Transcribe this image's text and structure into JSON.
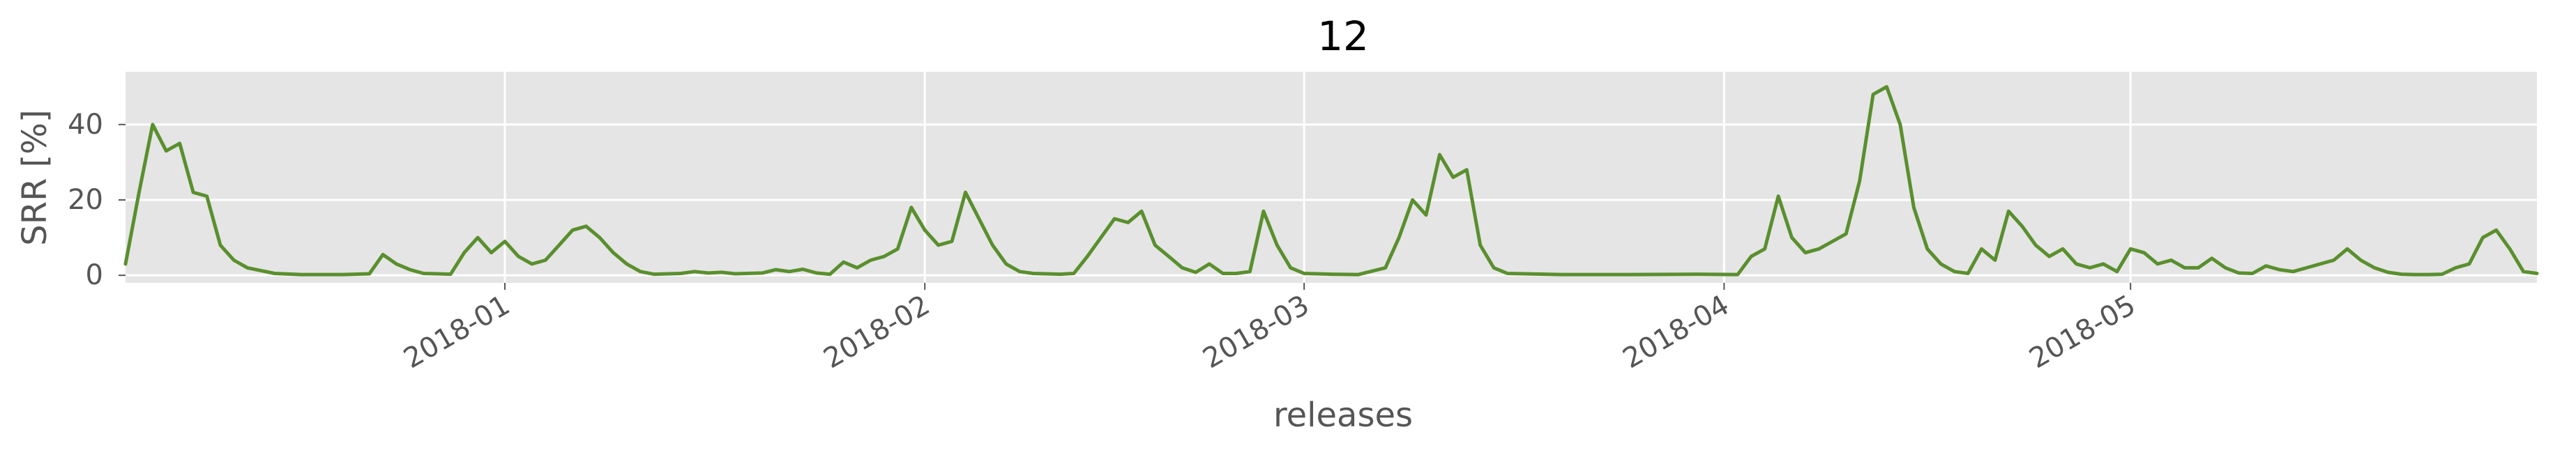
{
  "chart_data": {
    "type": "line",
    "title": "12",
    "xlabel": "releases",
    "ylabel": "SRR [%]",
    "x_tick_labels": [
      "2018-01",
      "2018-02",
      "2018-03",
      "2018-04",
      "2018-05"
    ],
    "y_tick_labels": [
      "0",
      "20",
      "40"
    ],
    "ylim": [
      -2,
      54
    ],
    "y_ticks": [
      0,
      20,
      40
    ],
    "grid": true,
    "xlim": [
      "2017-12-04",
      "2018-05-31"
    ],
    "x_ticks": [
      "2018-01-01",
      "2018-02-01",
      "2018-03-01",
      "2018-04-01",
      "2018-05-01"
    ],
    "series": [
      {
        "color": "#5a8f2e",
        "points": [
          [
            "2017-12-04",
            3
          ],
          [
            "2017-12-05",
            22
          ],
          [
            "2017-12-06",
            40
          ],
          [
            "2017-12-07",
            33
          ],
          [
            "2017-12-08",
            35
          ],
          [
            "2017-12-09",
            22
          ],
          [
            "2017-12-10",
            21
          ],
          [
            "2017-12-11",
            8
          ],
          [
            "2017-12-12",
            4
          ],
          [
            "2017-12-13",
            2
          ],
          [
            "2017-12-15",
            0.5
          ],
          [
            "2017-12-17",
            0.2
          ],
          [
            "2017-12-20",
            0.2
          ],
          [
            "2017-12-22",
            0.4
          ],
          [
            "2017-12-23",
            5.5
          ],
          [
            "2017-12-24",
            3
          ],
          [
            "2017-12-25",
            1.5
          ],
          [
            "2017-12-26",
            0.5
          ],
          [
            "2017-12-28",
            0.3
          ],
          [
            "2017-12-29",
            6
          ],
          [
            "2017-12-30",
            10
          ],
          [
            "2017-12-31",
            6
          ],
          [
            "2018-01-01",
            9
          ],
          [
            "2018-01-02",
            5
          ],
          [
            "2018-01-03",
            3
          ],
          [
            "2018-01-04",
            4
          ],
          [
            "2018-01-05",
            8
          ],
          [
            "2018-01-06",
            12
          ],
          [
            "2018-01-07",
            13
          ],
          [
            "2018-01-08",
            10
          ],
          [
            "2018-01-09",
            6
          ],
          [
            "2018-01-10",
            3
          ],
          [
            "2018-01-11",
            1
          ],
          [
            "2018-01-12",
            0.3
          ],
          [
            "2018-01-14",
            0.5
          ],
          [
            "2018-01-15",
            1
          ],
          [
            "2018-01-16",
            0.6
          ],
          [
            "2018-01-17",
            0.8
          ],
          [
            "2018-01-18",
            0.4
          ],
          [
            "2018-01-20",
            0.6
          ],
          [
            "2018-01-21",
            1.5
          ],
          [
            "2018-01-22",
            1
          ],
          [
            "2018-01-23",
            1.6
          ],
          [
            "2018-01-24",
            0.6
          ],
          [
            "2018-01-25",
            0.3
          ],
          [
            "2018-01-26",
            3.5
          ],
          [
            "2018-01-27",
            2
          ],
          [
            "2018-01-28",
            4
          ],
          [
            "2018-01-29",
            5
          ],
          [
            "2018-01-30",
            7
          ],
          [
            "2018-01-31",
            18
          ],
          [
            "2018-02-01",
            12
          ],
          [
            "2018-02-02",
            8
          ],
          [
            "2018-02-03",
            9
          ],
          [
            "2018-02-04",
            22
          ],
          [
            "2018-02-05",
            15
          ],
          [
            "2018-02-06",
            8
          ],
          [
            "2018-02-07",
            3
          ],
          [
            "2018-02-08",
            1
          ],
          [
            "2018-02-09",
            0.5
          ],
          [
            "2018-02-11",
            0.3
          ],
          [
            "2018-02-12",
            0.5
          ],
          [
            "2018-02-13",
            5
          ],
          [
            "2018-02-14",
            10
          ],
          [
            "2018-02-15",
            15
          ],
          [
            "2018-02-16",
            14
          ],
          [
            "2018-02-17",
            17
          ],
          [
            "2018-02-18",
            8
          ],
          [
            "2018-02-19",
            5
          ],
          [
            "2018-02-20",
            2
          ],
          [
            "2018-02-21",
            0.8
          ],
          [
            "2018-02-22",
            3
          ],
          [
            "2018-02-23",
            0.5
          ],
          [
            "2018-02-24",
            0.5
          ],
          [
            "2018-02-25",
            1
          ],
          [
            "2018-02-26",
            17
          ],
          [
            "2018-02-27",
            8
          ],
          [
            "2018-02-28",
            2
          ],
          [
            "2018-03-01",
            0.5
          ],
          [
            "2018-03-03",
            0.3
          ],
          [
            "2018-03-05",
            0.2
          ],
          [
            "2018-03-07",
            2
          ],
          [
            "2018-03-08",
            10
          ],
          [
            "2018-03-09",
            20
          ],
          [
            "2018-03-10",
            16
          ],
          [
            "2018-03-11",
            32
          ],
          [
            "2018-03-12",
            26
          ],
          [
            "2018-03-13",
            28
          ],
          [
            "2018-03-14",
            8
          ],
          [
            "2018-03-15",
            2
          ],
          [
            "2018-03-16",
            0.5
          ],
          [
            "2018-03-20",
            0.2
          ],
          [
            "2018-03-25",
            0.2
          ],
          [
            "2018-03-30",
            0.3
          ],
          [
            "2018-04-02",
            0.2
          ],
          [
            "2018-04-03",
            5
          ],
          [
            "2018-04-04",
            7
          ],
          [
            "2018-04-05",
            21
          ],
          [
            "2018-04-06",
            10
          ],
          [
            "2018-04-07",
            6
          ],
          [
            "2018-04-08",
            7
          ],
          [
            "2018-04-09",
            9
          ],
          [
            "2018-04-10",
            11
          ],
          [
            "2018-04-11",
            25
          ],
          [
            "2018-04-12",
            48
          ],
          [
            "2018-04-13",
            50
          ],
          [
            "2018-04-14",
            40
          ],
          [
            "2018-04-15",
            18
          ],
          [
            "2018-04-16",
            7
          ],
          [
            "2018-04-17",
            3
          ],
          [
            "2018-04-18",
            1
          ],
          [
            "2018-04-19",
            0.5
          ],
          [
            "2018-04-20",
            7
          ],
          [
            "2018-04-21",
            4
          ],
          [
            "2018-04-22",
            17
          ],
          [
            "2018-04-23",
            13
          ],
          [
            "2018-04-24",
            8
          ],
          [
            "2018-04-25",
            5
          ],
          [
            "2018-04-26",
            7
          ],
          [
            "2018-04-27",
            3
          ],
          [
            "2018-04-28",
            2
          ],
          [
            "2018-04-29",
            3
          ],
          [
            "2018-04-30",
            1
          ],
          [
            "2018-05-01",
            7
          ],
          [
            "2018-05-02",
            6
          ],
          [
            "2018-05-03",
            3
          ],
          [
            "2018-05-04",
            4
          ],
          [
            "2018-05-05",
            2
          ],
          [
            "2018-05-06",
            2
          ],
          [
            "2018-05-07",
            4.5
          ],
          [
            "2018-05-08",
            2
          ],
          [
            "2018-05-09",
            0.6
          ],
          [
            "2018-05-10",
            0.5
          ],
          [
            "2018-05-11",
            2.5
          ],
          [
            "2018-05-12",
            1.5
          ],
          [
            "2018-05-13",
            1
          ],
          [
            "2018-05-14",
            2
          ],
          [
            "2018-05-15",
            3
          ],
          [
            "2018-05-16",
            4
          ],
          [
            "2018-05-17",
            7
          ],
          [
            "2018-05-18",
            4
          ],
          [
            "2018-05-19",
            2
          ],
          [
            "2018-05-20",
            0.8
          ],
          [
            "2018-05-21",
            0.3
          ],
          [
            "2018-05-22",
            0.2
          ],
          [
            "2018-05-23",
            0.2
          ],
          [
            "2018-05-24",
            0.3
          ],
          [
            "2018-05-25",
            2
          ],
          [
            "2018-05-26",
            3
          ],
          [
            "2018-05-27",
            10
          ],
          [
            "2018-05-28",
            12
          ],
          [
            "2018-05-29",
            7
          ],
          [
            "2018-05-30",
            1
          ],
          [
            "2018-05-31",
            0.5
          ]
        ]
      }
    ]
  }
}
